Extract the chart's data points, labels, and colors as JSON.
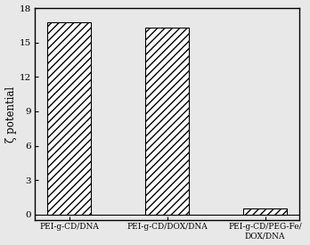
{
  "categories": [
    "PEI-g-CD/DNA",
    "PEI-g-CD/DOX/DNA",
    "PEI-g-CD/PEG-Fe/\nDOX/DNA"
  ],
  "values": [
    16.8,
    16.3,
    0.5
  ],
  "ylim": [
    -0.5,
    18
  ],
  "yticks": [
    0,
    3,
    6,
    9,
    12,
    15,
    18
  ],
  "ylabel": "ζ potential",
  "bar_color": "white",
  "bar_edgecolor": "black",
  "hatch": "////",
  "figsize": [
    3.48,
    2.75
  ],
  "dpi": 100,
  "bg_color": "#e8e8e8"
}
